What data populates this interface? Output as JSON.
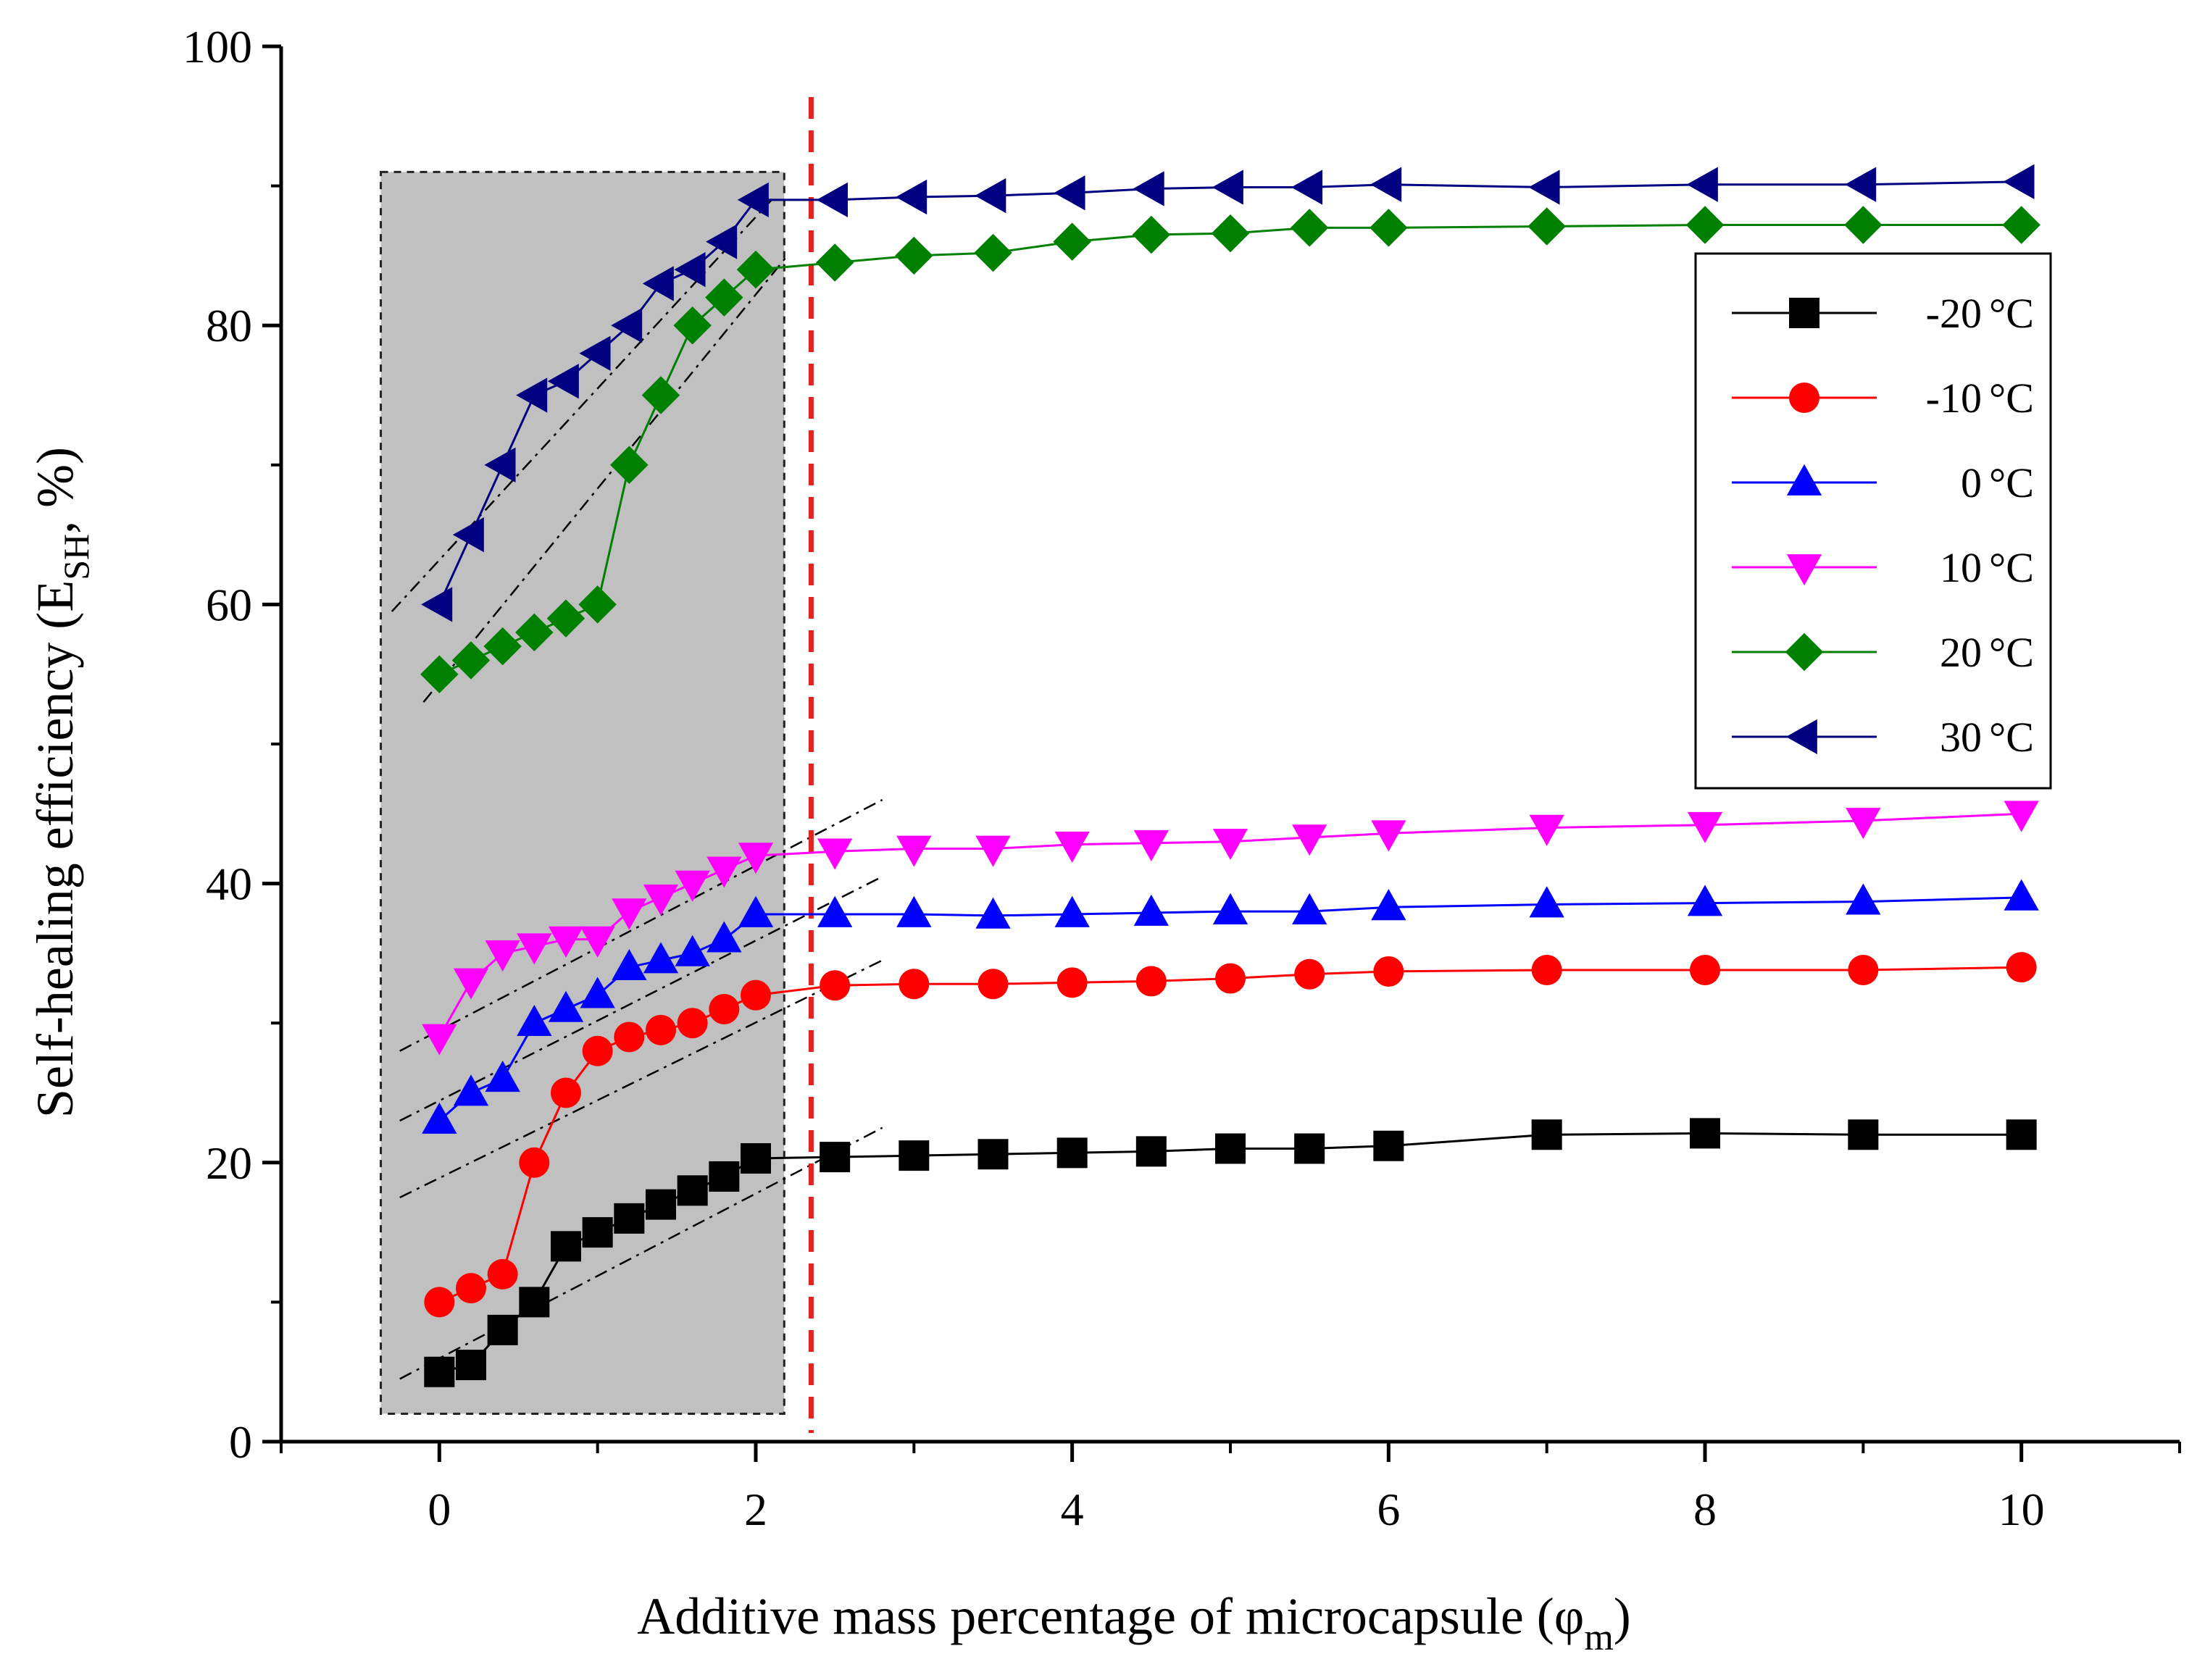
{
  "chart_data": {
    "type": "line",
    "title": "",
    "xlabel": "Additive mass percentage of microcapsule (φ",
    "xlabel_sub": "m",
    "xlabel_end": ")",
    "ylabel": "Self-healing efficiency (E",
    "ylabel_sub": "SH",
    "ylabel_end": ", %)",
    "xlim": [
      -1,
      11
    ],
    "ylim": [
      0,
      100
    ],
    "xticks": [
      0,
      2,
      4,
      6,
      8,
      10
    ],
    "yticks": [
      0,
      20,
      40,
      60,
      80,
      100
    ],
    "legend_position": "upper-right",
    "x": [
      0,
      0.2,
      0.4,
      0.6,
      0.8,
      1.0,
      1.2,
      1.4,
      1.6,
      1.8,
      2.0,
      2.5,
      3.0,
      3.5,
      4.0,
      4.5,
      5.0,
      5.5,
      6.0,
      7.0,
      8.0,
      9.0,
      10.0
    ],
    "series": [
      {
        "name": "-20",
        "unit": "°C",
        "color": "#000000",
        "marker": "square",
        "values": [
          5,
          5.5,
          8,
          10,
          14,
          15,
          16,
          17,
          18,
          19,
          20.3,
          20.4,
          20.5,
          20.6,
          20.7,
          20.8,
          21,
          21,
          21.2,
          22,
          22.1,
          22,
          22
        ]
      },
      {
        "name": "-10",
        "unit": "°C",
        "color": "#ff0000",
        "marker": "circle",
        "values": [
          10,
          11,
          12,
          20,
          25,
          28,
          29,
          29.5,
          30,
          31,
          32,
          32.7,
          32.8,
          32.8,
          32.9,
          33,
          33.2,
          33.5,
          33.7,
          33.8,
          33.8,
          33.8,
          34
        ]
      },
      {
        "name": "0",
        "unit": "°C",
        "color": "#0000ff",
        "marker": "triangle-up",
        "values": [
          23,
          25,
          26,
          30,
          31,
          32,
          34,
          34.5,
          35,
          36,
          37.8,
          37.8,
          37.8,
          37.7,
          37.8,
          37.9,
          38,
          38,
          38.3,
          38.5,
          38.6,
          38.7,
          39
        ]
      },
      {
        "name": "10",
        "unit": "°C",
        "color": "#ff00ff",
        "marker": "triangle-down",
        "values": [
          29,
          33,
          35,
          35.5,
          36,
          36,
          38,
          39,
          40,
          41,
          42,
          42.3,
          42.5,
          42.5,
          42.8,
          42.9,
          43,
          43.3,
          43.6,
          44,
          44.2,
          44.5,
          45
        ]
      },
      {
        "name": "20",
        "unit": "°C",
        "color": "#008000",
        "marker": "diamond",
        "values": [
          55,
          56,
          57,
          58,
          59,
          60,
          70,
          75,
          80,
          82,
          84,
          84.5,
          85,
          85.2,
          86,
          86.5,
          86.6,
          87,
          87,
          87.1,
          87.2,
          87.2,
          87.2
        ]
      },
      {
        "name": "30",
        "unit": "°C",
        "color": "#000080",
        "marker": "triangle-left",
        "values": [
          60,
          65,
          70,
          75,
          76,
          78,
          80,
          83,
          84,
          86,
          89,
          89,
          89.2,
          89.3,
          89.5,
          89.8,
          89.9,
          89.9,
          90.1,
          89.9,
          90.1,
          90.1,
          90.3
        ]
      }
    ],
    "shaded_region": {
      "x_range": [
        -0.37,
        2.18
      ],
      "y_range": [
        2,
        91
      ]
    },
    "vertical_reference_line": {
      "x": 2.35,
      "color": "#e32222",
      "style": "dashed"
    },
    "trend_lines": [
      {
        "from": [
          -0.25,
          4.5
        ],
        "to": [
          2.8,
          22.5
        ]
      },
      {
        "from": [
          -0.25,
          17.5
        ],
        "to": [
          2.8,
          34.5
        ]
      },
      {
        "from": [
          -0.25,
          23
        ],
        "to": [
          2.8,
          40.5
        ]
      },
      {
        "from": [
          -0.25,
          28
        ],
        "to": [
          2.8,
          46
        ]
      },
      {
        "from": [
          -0.1,
          53
        ],
        "to": [
          2.2,
          85
        ]
      },
      {
        "from": [
          -0.3,
          59.5
        ],
        "to": [
          2.1,
          89
        ]
      }
    ]
  }
}
